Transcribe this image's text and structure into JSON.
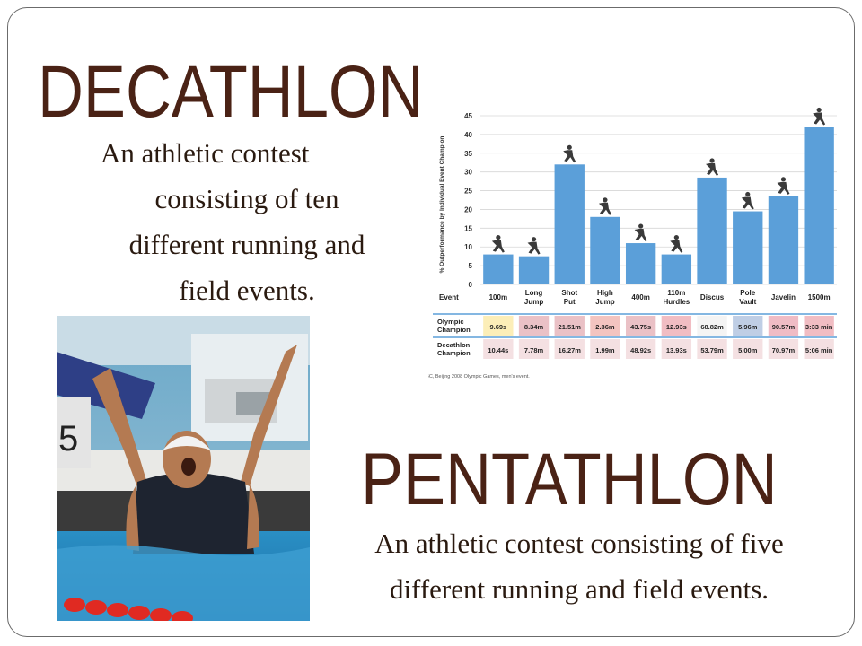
{
  "slide": {
    "decathlon": {
      "title": "DECATHLON",
      "description_lines": [
        "An athletic contest",
        "consisting of ten",
        "different running and",
        "field events."
      ]
    },
    "pentathlon": {
      "title": "PENTATHLON",
      "description_lines": [
        "An athletic contest consisting of five",
        "different running and field events."
      ]
    },
    "photo": {
      "lane_marker": "5"
    }
  },
  "chart_data": {
    "type": "bar",
    "ylabel": "% Outperformance by Individual Event Champion",
    "ylim": [
      0,
      45
    ],
    "yticks": [
      0,
      5,
      10,
      15,
      20,
      25,
      30,
      35,
      40,
      45
    ],
    "row_label_event": "Event",
    "categories": [
      "100m",
      "Long Jump",
      "Shot Put",
      "High Jump",
      "400m",
      "110m Hurdles",
      "Discus",
      "Pole Vault",
      "Javelin",
      "1500m"
    ],
    "category_lines": [
      [
        "100m"
      ],
      [
        "Long",
        "Jump"
      ],
      [
        "Shot",
        "Put"
      ],
      [
        "High",
        "Jump"
      ],
      [
        "400m"
      ],
      [
        "110m",
        "Hurdles"
      ],
      [
        "Discus"
      ],
      [
        "Pole",
        "Vault"
      ],
      [
        "Javelin"
      ],
      [
        "1500m"
      ]
    ],
    "values": [
      8,
      7.5,
      32,
      18,
      11,
      8,
      28.5,
      19.5,
      23.5,
      42
    ],
    "bar_color": "#5b9fd9",
    "table": {
      "olympic_label": [
        "Olympic",
        "Champion"
      ],
      "decathlon_label": [
        "Decathlon",
        "Champion"
      ],
      "olympic": [
        "9.69s",
        "8.34m",
        "21.51m",
        "2.36m",
        "43.75s",
        "12.93s",
        "68.82m",
        "5.96m",
        "90.57m",
        "3:33 min"
      ],
      "decathlon": [
        "10.44s",
        "7.78m",
        "16.27m",
        "1.99m",
        "48.92s",
        "13.93s",
        "53.79m",
        "5.00m",
        "70.97m",
        "5:06 min"
      ]
    },
    "source": "Source: BBC, Beijing 2008 Olympic Games, men's event."
  }
}
